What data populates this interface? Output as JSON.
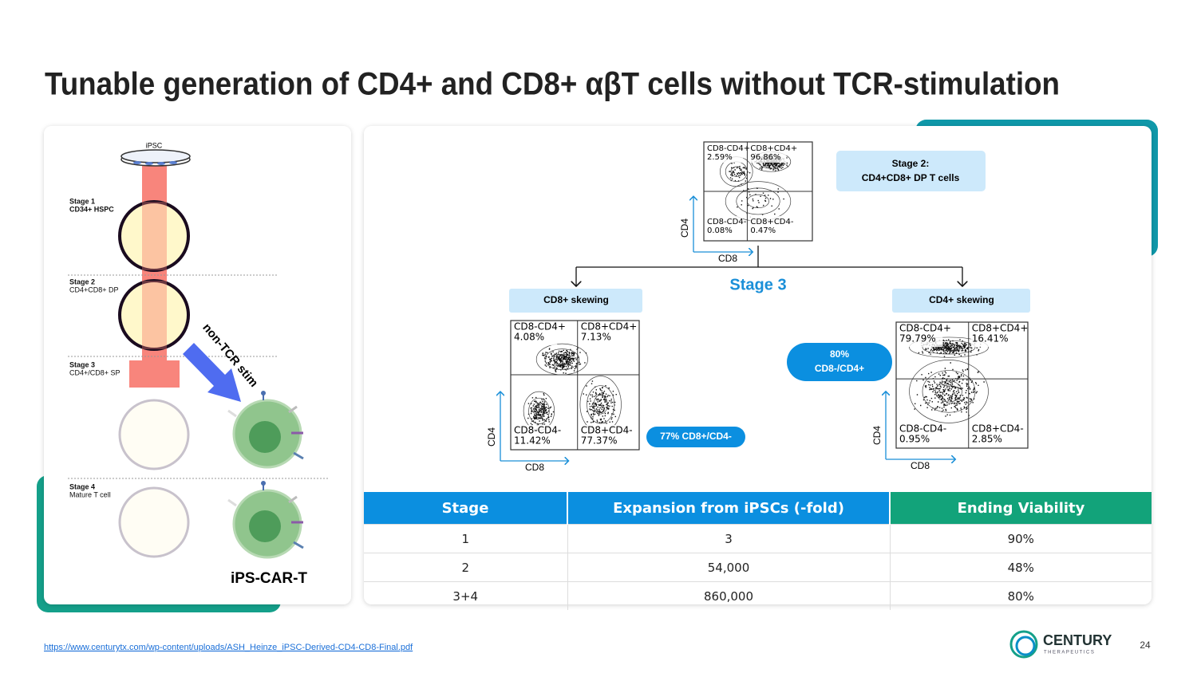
{
  "title": "Tunable generation of CD4+ and CD8+ αβT cells without TCR-stimulation",
  "diagram": {
    "top_label": "iPSC",
    "stages": [
      {
        "name": "Stage 1",
        "desc": "CD34+ HSPC"
      },
      {
        "name": "Stage 2",
        "desc": "CD4+CD8+ DP"
      },
      {
        "name": "Stage 3",
        "desc": "CD4+/CD8+ SP"
      },
      {
        "name": "Stage 4",
        "desc": "Mature T cell"
      }
    ],
    "arrow_label": "non-TCR stim",
    "product": "iPS-CAR-T"
  },
  "flow": {
    "stage2_box": [
      "Stage 2:",
      "CD4+CD8+ DP T cells"
    ],
    "stage3_label": "Stage 3",
    "left_label": "CD8+ skewing",
    "right_label": "CD4+ skewing",
    "left_pill": "77% CD8+/CD4-",
    "right_pill": [
      "80%",
      "CD8-/CD4+"
    ],
    "plots": {
      "top": {
        "x_label": "CD8",
        "y_label": "CD4",
        "quadrants": [
          {
            "label": "CD8-CD4+",
            "value": "2.59%"
          },
          {
            "label": "CD8+CD4+",
            "value": "96.86%"
          },
          {
            "label": "CD8-CD4-",
            "value": "0.08%"
          },
          {
            "label": "CD8+CD4-",
            "value": "0.47%"
          }
        ]
      },
      "left": {
        "x_label": "CD8",
        "y_label": "CD4",
        "quadrants": [
          {
            "label": "CD8-CD4+",
            "value": "4.08%"
          },
          {
            "label": "CD8+CD4+",
            "value": "7.13%"
          },
          {
            "label": "CD8-CD4-",
            "value": "11.42%"
          },
          {
            "label": "CD8+CD4-",
            "value": "77.37%"
          }
        ]
      },
      "right": {
        "x_label": "CD8",
        "y_label": "CD4",
        "quadrants": [
          {
            "label": "CD8-CD4+",
            "value": "79.79%"
          },
          {
            "label": "CD8+CD4+",
            "value": "16.41%"
          },
          {
            "label": "CD8-CD4-",
            "value": "0.95%"
          },
          {
            "label": "CD8+CD4-",
            "value": "2.85%"
          }
        ]
      }
    }
  },
  "table": {
    "headers": [
      "Stage",
      "Expansion from iPSCs (-fold)",
      "Ending Viability"
    ],
    "rows": [
      [
        "1",
        "3",
        "90%"
      ],
      [
        "2",
        "54,000",
        "48%"
      ],
      [
        "3+4",
        "860,000",
        "80%"
      ]
    ]
  },
  "footer": {
    "link": "https://www.centurytx.com/wp-content/uploads/ASH_Heinze_iPSC-Derived-CD4-CD8-Final.pdf",
    "logo": "CENTURY",
    "logo_sub": "THERAPEUTICS",
    "page": "24"
  }
}
